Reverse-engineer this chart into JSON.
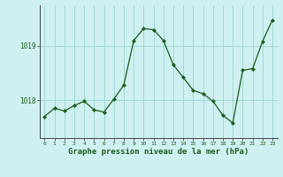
{
  "x": [
    0,
    1,
    2,
    3,
    4,
    5,
    6,
    7,
    8,
    9,
    10,
    11,
    12,
    13,
    14,
    15,
    16,
    17,
    18,
    19,
    20,
    21,
    22,
    23
  ],
  "y": [
    1017.7,
    1017.85,
    1017.8,
    1017.9,
    1017.98,
    1017.82,
    1017.78,
    1018.02,
    1018.28,
    1019.1,
    1019.32,
    1019.3,
    1019.1,
    1018.65,
    1018.42,
    1018.18,
    1018.12,
    1017.98,
    1017.72,
    1017.58,
    1018.55,
    1018.58,
    1019.08,
    1019.48
  ],
  "line_color": "#1a5c1a",
  "marker": "D",
  "marker_size": 2.2,
  "bg_color": "#cff0f0",
  "grid_color": "#a0d8d8",
  "ylabel_ticks": [
    1018,
    1019
  ],
  "ylabel_labels": [
    "1018",
    "1019"
  ],
  "x_tick_labels": [
    "0",
    "1",
    "2",
    "3",
    "4",
    "5",
    "6",
    "7",
    "8",
    "9",
    "10",
    "11",
    "12",
    "13",
    "14",
    "15",
    "16",
    "17",
    "18",
    "19",
    "20",
    "21",
    "22",
    "23"
  ],
  "xlabel": "Graphe pression niveau de la mer (hPa)",
  "xlim": [
    -0.5,
    23.5
  ],
  "ylim": [
    1017.3,
    1019.75
  ]
}
